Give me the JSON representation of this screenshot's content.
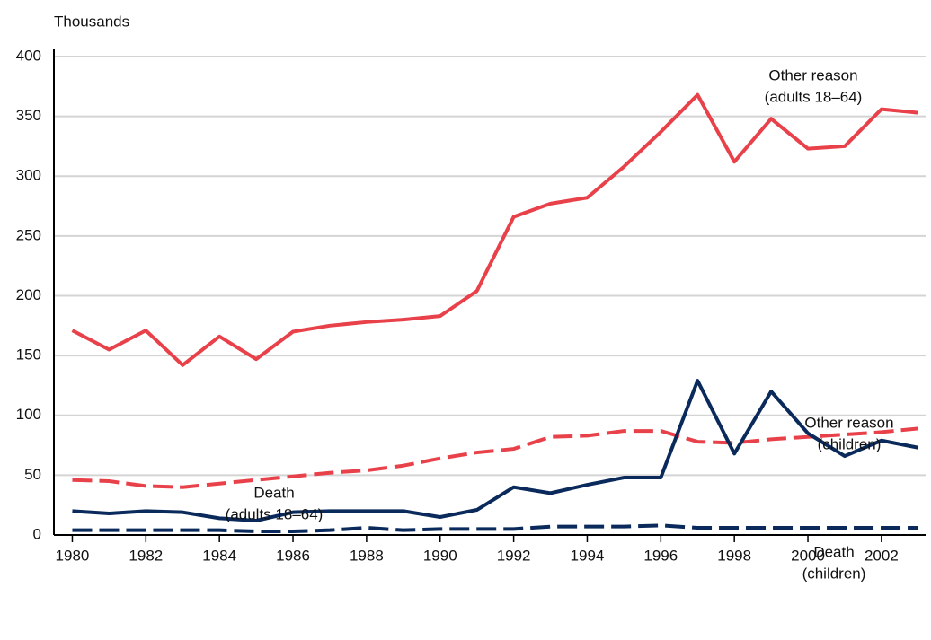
{
  "chart_data": {
    "type": "line",
    "y_label": "Thousands",
    "x": [
      1980,
      1981,
      1982,
      1983,
      1984,
      1985,
      1986,
      1987,
      1988,
      1989,
      1990,
      1991,
      1992,
      1993,
      1994,
      1995,
      1996,
      1997,
      1998,
      1999,
      2000,
      2001,
      2002,
      2003
    ],
    "series": [
      {
        "name": [
          "Other reason",
          "(adults 18–64)"
        ],
        "color": "#e8414a",
        "dash": false,
        "values": [
          171,
          155,
          171,
          142,
          166,
          147,
          170,
          175,
          178,
          180,
          183,
          204,
          266,
          277,
          282,
          308,
          337,
          368,
          312,
          348,
          323,
          325,
          356,
          353
        ]
      },
      {
        "name": [
          "Death",
          "(adults 18–64)"
        ],
        "color": "#e8414a",
        "dash": true,
        "values": [
          46,
          45,
          41,
          40,
          43,
          46,
          49,
          52,
          54,
          58,
          64,
          69,
          72,
          82,
          83,
          87,
          87,
          78,
          77,
          80,
          82,
          84,
          86,
          89
        ]
      },
      {
        "name": [
          "Other reason",
          "(children)"
        ],
        "color": "#0a2a5c",
        "dash": false,
        "values": [
          20,
          18,
          20,
          19,
          14,
          12,
          19,
          20,
          20,
          20,
          15,
          21,
          40,
          35,
          42,
          48,
          48,
          129,
          68,
          120,
          85,
          66,
          79,
          73
        ]
      },
      {
        "name": [
          "Death",
          "(children)"
        ],
        "color": "#0a2a5c",
        "dash": true,
        "values": [
          4,
          4,
          4,
          4,
          4,
          3,
          3,
          4,
          6,
          4,
          5,
          5,
          5,
          7,
          7,
          7,
          8,
          6,
          6,
          6,
          6,
          6,
          6,
          6
        ]
      }
    ],
    "xlim": [
      1979.5,
      2003.2
    ],
    "ylim": [
      0,
      400
    ],
    "xticks": [
      1980,
      1982,
      1984,
      1986,
      1988,
      1990,
      1992,
      1994,
      1996,
      1998,
      2000,
      2002
    ],
    "yticks": [
      0,
      50,
      100,
      150,
      200,
      250,
      300,
      350,
      400
    ],
    "grid": true
  }
}
